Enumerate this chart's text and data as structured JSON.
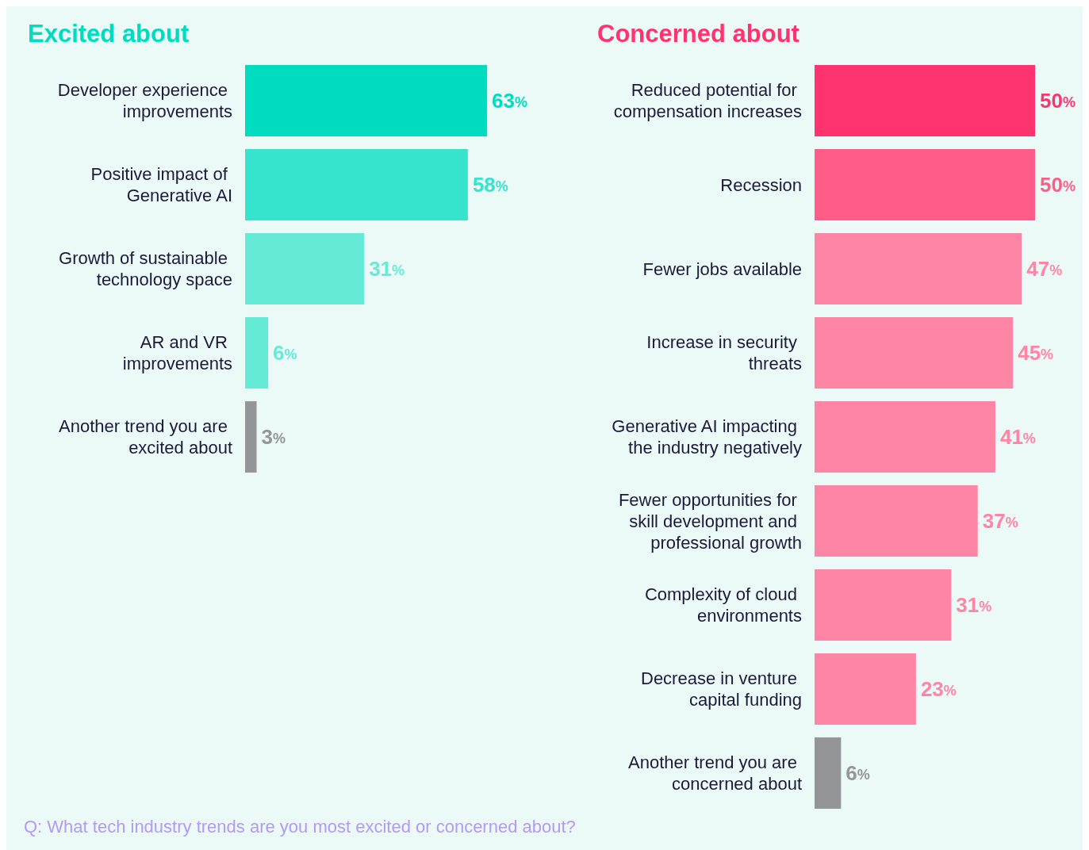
{
  "chart_data": [
    {
      "type": "bar",
      "orientation": "horizontal",
      "title": "Excited about",
      "categories": [
        "Developer experience improvements",
        "Positive impact of Generative AI",
        "Growth of sustainable technology space",
        "AR and VR improvements",
        "Another trend you are excited about"
      ],
      "values": [
        63,
        58,
        31,
        6,
        3
      ],
      "value_labels": [
        "63%",
        "58%",
        "31%",
        "6%",
        "3%"
      ],
      "colors": [
        "#00dcbf",
        "#36e3cc",
        "#66ead8",
        "#66ead8",
        "#939598"
      ],
      "tick_labels": "y",
      "annotations": [
        "Q: What tech industry trends are you most excited or concerned about?"
      ]
    },
    {
      "type": "bar",
      "orientation": "horizontal",
      "title": "Concerned about",
      "categories": [
        "Reduced potential for compensation increases",
        "Recession",
        "Fewer jobs available",
        "Increase in security threats",
        "Generative AI impacting the industry negatively",
        "Fewer opportunities for skill development and professional growth",
        "Complexity of cloud environments",
        "Decrease in venture capital funding",
        "Another trend you are concerned about"
      ],
      "values": [
        50,
        50,
        47,
        45,
        41,
        37,
        31,
        23,
        6
      ],
      "value_labels": [
        "50%",
        "50%",
        "47%",
        "45%",
        "41%",
        "37%",
        "31%",
        "23%",
        "6%"
      ],
      "colors": [
        "#ff3370",
        "#ff5c8a",
        "#ff85a6",
        "#ff85a6",
        "#ff85a6",
        "#ff85a6",
        "#ff85a6",
        "#ff85a6",
        "#939598"
      ],
      "tick_labels": "y"
    }
  ]
}
